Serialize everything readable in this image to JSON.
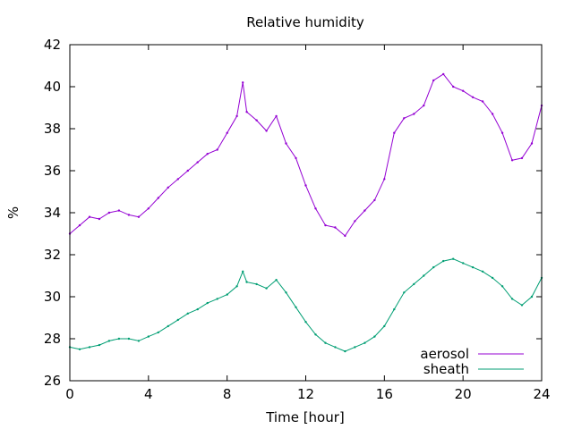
{
  "chart_data": {
    "type": "line",
    "title": "Relative humidity",
    "xlabel": "Time [hour]",
    "ylabel": "%",
    "xlim": [
      0,
      24
    ],
    "ylim": [
      26,
      42
    ],
    "x_ticks": [
      "0",
      "4",
      "8",
      "12",
      "16",
      "20",
      "24"
    ],
    "y_ticks": [
      "26",
      "28",
      "30",
      "32",
      "34",
      "36",
      "38",
      "40",
      "42"
    ],
    "grid": false,
    "legend_position": "bottom-right",
    "series": [
      {
        "name": "aerosol",
        "color": "#9400d3",
        "x": [
          0,
          0.5,
          1,
          1.5,
          2,
          2.5,
          3,
          3.5,
          4,
          4.5,
          5,
          5.5,
          6,
          6.5,
          7,
          7.5,
          8,
          8.5,
          8.8,
          9,
          9.5,
          10,
          10.5,
          11,
          11.5,
          12,
          12.5,
          13,
          13.5,
          14,
          14.5,
          15,
          15.5,
          16,
          16.5,
          17,
          17.5,
          18,
          18.5,
          19,
          19.5,
          20,
          20.5,
          21,
          21.5,
          22,
          22.5,
          23,
          23.5,
          24
        ],
        "values": [
          33.0,
          33.4,
          33.8,
          33.7,
          34.0,
          34.1,
          33.9,
          33.8,
          34.2,
          34.7,
          35.2,
          35.6,
          36.0,
          36.4,
          36.8,
          37.0,
          37.8,
          38.6,
          40.2,
          38.8,
          38.4,
          37.9,
          38.6,
          37.3,
          36.6,
          35.3,
          34.2,
          33.4,
          33.3,
          32.9,
          33.6,
          34.1,
          34.6,
          35.6,
          37.8,
          38.5,
          38.7,
          39.1,
          40.3,
          40.6,
          40.0,
          39.8,
          39.5,
          39.3,
          38.7,
          37.8,
          36.5,
          36.6,
          37.3,
          39.1
        ]
      },
      {
        "name": "sheath",
        "color": "#009e73",
        "x": [
          0,
          0.5,
          1,
          1.5,
          2,
          2.5,
          3,
          3.5,
          4,
          4.5,
          5,
          5.5,
          6,
          6.5,
          7,
          7.5,
          8,
          8.5,
          8.8,
          9,
          9.5,
          10,
          10.5,
          11,
          11.5,
          12,
          12.5,
          13,
          13.5,
          14,
          14.5,
          15,
          15.5,
          16,
          16.5,
          17,
          17.5,
          18,
          18.5,
          19,
          19.5,
          20,
          20.5,
          21,
          21.5,
          22,
          22.5,
          23,
          23.5,
          24
        ],
        "values": [
          27.6,
          27.5,
          27.6,
          27.7,
          27.9,
          28.0,
          28.0,
          27.9,
          28.1,
          28.3,
          28.6,
          28.9,
          29.2,
          29.4,
          29.7,
          29.9,
          30.1,
          30.5,
          31.2,
          30.7,
          30.6,
          30.4,
          30.8,
          30.2,
          29.5,
          28.8,
          28.2,
          27.8,
          27.6,
          27.4,
          27.6,
          27.8,
          28.1,
          28.6,
          29.4,
          30.2,
          30.6,
          31.0,
          31.4,
          31.7,
          31.8,
          31.6,
          31.4,
          31.2,
          30.9,
          30.5,
          29.9,
          29.6,
          30.0,
          30.9
        ]
      }
    ]
  }
}
